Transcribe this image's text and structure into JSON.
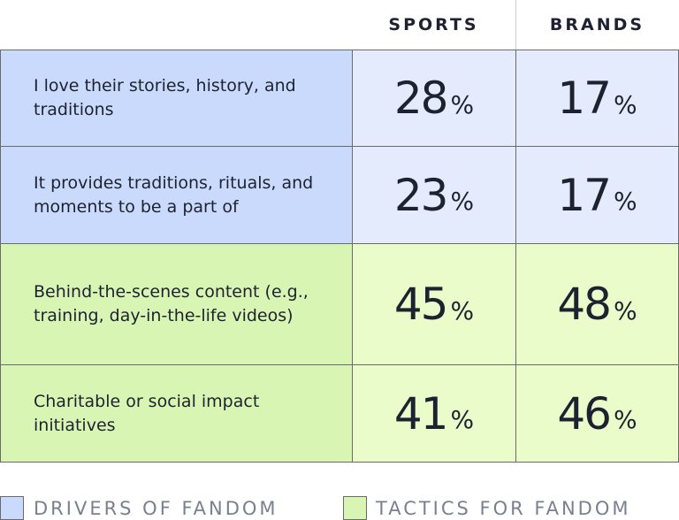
{
  "header": {
    "columns": [
      "SPORTS",
      "BRANDS"
    ]
  },
  "table": {
    "rows": [
      {
        "label": "I love their stories, history, and traditions",
        "group": 0,
        "cells": [
          {
            "number": 28,
            "unit": "%"
          },
          {
            "number": 17,
            "unit": "%"
          }
        ]
      },
      {
        "label": "It provides traditions, rituals, and moments to be a part of",
        "group": 0,
        "cells": [
          {
            "number": 23,
            "unit": "%"
          },
          {
            "number": 17,
            "unit": "%"
          }
        ]
      },
      {
        "label": "Behind-the-scenes content (e.g., training, day-in-the-life videos)",
        "group": 1,
        "cells": [
          {
            "number": 45,
            "unit": "%"
          },
          {
            "number": 48,
            "unit": "%"
          }
        ]
      },
      {
        "label": "Charitable or social impact initiatives",
        "group": 1,
        "cells": [
          {
            "number": 41,
            "unit": "%"
          },
          {
            "number": 46,
            "unit": "%"
          }
        ]
      }
    ]
  },
  "legend": [
    {
      "label": "DRIVERS OF FANDOM",
      "color": "#c9dafc",
      "cell_color": "#e3ebfd"
    },
    {
      "label": "TACTICS FOR FANDOM",
      "color": "#d8f5b4",
      "cell_color": "#e9fcca"
    }
  ]
}
